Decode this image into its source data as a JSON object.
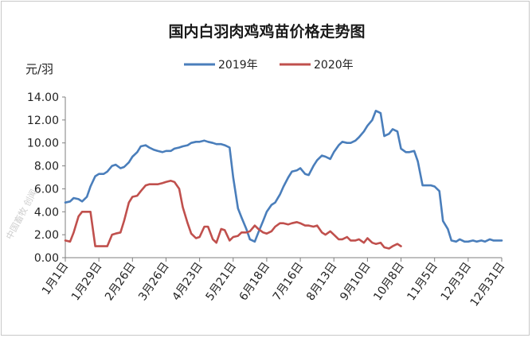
{
  "chart_data": {
    "type": "line",
    "title": "国内白羽肉鸡鸡苗价格走势图",
    "ylabel": "元/羽",
    "ylim": [
      0,
      14
    ],
    "yticks": [
      "0.00",
      "2.00",
      "4.00",
      "6.00",
      "8.00",
      "10.00",
      "12.00",
      "14.00"
    ],
    "xticks": [
      "1月1日",
      "1月29日",
      "2月26日",
      "3月26日",
      "4月23日",
      "5月21日",
      "6月18日",
      "7月16日",
      "8月13日",
      "9月10日",
      "10月8日",
      "11月5日",
      "12月3日",
      "12月31日"
    ],
    "grid": false,
    "legend_position": "top",
    "series": [
      {
        "name": "2019年",
        "color": "#4a7ebb",
        "x": [
          "1月1日",
          "1月5日",
          "1月8日",
          "1月12日",
          "1月15日",
          "1月19日",
          "1月22日",
          "1月26日",
          "1月29日",
          "2月2日",
          "2月5日",
          "2月9日",
          "2月12日",
          "2月16日",
          "2月19日",
          "2月23日",
          "2月26日",
          "3月2日",
          "3月5日",
          "3月9日",
          "3月12日",
          "3月16日",
          "3月19日",
          "3月23日",
          "3月26日",
          "3月30日",
          "4月2日",
          "4月6日",
          "4月9日",
          "4月13日",
          "4月16日",
          "4月20日",
          "4月23日",
          "4月27日",
          "4月30日",
          "5月4日",
          "5月7日",
          "5月11日",
          "5月14日",
          "5月18日",
          "5月21日",
          "5月25日",
          "5月28日",
          "6月1日",
          "6月4日",
          "6月8日",
          "6月11日",
          "6月15日",
          "6月18日",
          "6月22日",
          "6月25日",
          "6月29日",
          "7月2日",
          "7月6日",
          "7月9日",
          "7月13日",
          "7月16日",
          "7月20日",
          "7月23日",
          "7月27日",
          "7月30日",
          "8月3日",
          "8月6日",
          "8月10日",
          "8月13日",
          "8月17日",
          "8月20日",
          "8月24日",
          "8月27日",
          "8月31日",
          "9月3日",
          "9月7日",
          "9月10日",
          "9月14日",
          "9月17日",
          "9月21日",
          "9月24日",
          "9月28日",
          "10月1日",
          "10月5日",
          "10月8日",
          "10月12日",
          "10月15日",
          "10月19日",
          "10月22日",
          "10月26日",
          "10月29日",
          "11月2日",
          "11月5日",
          "11月9日",
          "11月12日",
          "11月16日",
          "11月19日",
          "11月23日",
          "11月26日",
          "11月30日",
          "12月3日",
          "12月7日",
          "12月10日",
          "12月14日",
          "12月17日",
          "12月21日",
          "12月24日",
          "12月28日",
          "12月31日"
        ],
        "values": [
          4.8,
          4.9,
          5.2,
          5.1,
          4.9,
          5.3,
          6.2,
          7.1,
          7.3,
          7.3,
          7.5,
          8.0,
          8.1,
          7.8,
          7.9,
          8.3,
          8.8,
          9.2,
          9.7,
          9.8,
          9.6,
          9.4,
          9.3,
          9.2,
          9.3,
          9.3,
          9.5,
          9.6,
          9.7,
          9.8,
          10.0,
          10.1,
          10.1,
          10.2,
          10.1,
          10.0,
          9.9,
          9.9,
          9.8,
          9.6,
          7.0,
          4.3,
          3.5,
          2.5,
          1.6,
          1.4,
          2.2,
          3.2,
          4.0,
          4.6,
          4.8,
          5.5,
          6.2,
          7.0,
          7.5,
          7.6,
          7.8,
          7.3,
          7.2,
          8.0,
          8.5,
          8.9,
          8.8,
          8.6,
          9.2,
          9.8,
          10.1,
          10.0,
          10.0,
          10.2,
          10.5,
          11.0,
          11.5,
          12.0,
          12.8,
          12.6,
          10.6,
          10.8,
          11.2,
          11.0,
          9.5,
          9.2,
          9.2,
          9.3,
          8.4,
          6.3,
          6.3,
          6.3,
          6.2,
          5.8,
          3.2,
          2.5,
          1.5,
          1.4,
          1.6,
          1.4,
          1.4,
          1.5,
          1.4,
          1.5,
          1.4,
          1.6,
          1.5,
          1.5,
          1.5
        ]
      },
      {
        "name": "2020年",
        "color": "#c0504d",
        "x": [
          "1月1日",
          "1月5日",
          "1月8日",
          "1月12日",
          "1月15日",
          "1月19日",
          "1月22日",
          "1月26日",
          "1月29日",
          "2月2日",
          "2月5日",
          "2月9日",
          "2月12日",
          "2月16日",
          "2月19日",
          "2月23日",
          "2月26日",
          "3月2日",
          "3月5日",
          "3月9日",
          "3月12日",
          "3月16日",
          "3月19日",
          "3月23日",
          "3月26日",
          "3月30日",
          "4月2日",
          "4月6日",
          "4月9日",
          "4月13日",
          "4月16日",
          "4月20日",
          "4月23日",
          "4月27日",
          "4月30日",
          "5月4日",
          "5月7日",
          "5月11日",
          "5月14日",
          "5月18日",
          "5月21日",
          "5月25日",
          "5月28日",
          "6月1日",
          "6月4日",
          "6月8日",
          "6月11日",
          "6月15日",
          "6月18日",
          "6月22日",
          "6月25日",
          "6月29日",
          "7月2日",
          "7月6日",
          "7月9日",
          "7月13日",
          "7月16日",
          "7月20日",
          "7月23日",
          "7月27日",
          "7月30日",
          "8月3日",
          "8月6日",
          "8月10日",
          "8月13日",
          "8月17日",
          "8月20日",
          "8月24日",
          "8月27日",
          "8月31日",
          "9月3日",
          "9月7日",
          "9月10日",
          "9月14日",
          "9月17日",
          "9月21日",
          "9月24日",
          "9月28日",
          "10月1日",
          "10月5日",
          "10月8日"
        ],
        "values": [
          1.5,
          1.4,
          2.2,
          3.6,
          4.0,
          4.0,
          4.0,
          1.0,
          1.0,
          1.0,
          1.0,
          2.0,
          2.1,
          2.2,
          3.2,
          4.8,
          5.3,
          5.4,
          5.8,
          6.3,
          6.4,
          6.4,
          6.4,
          6.5,
          6.6,
          6.7,
          6.6,
          6.0,
          4.4,
          3.0,
          2.1,
          1.7,
          1.8,
          2.7,
          2.7,
          1.6,
          1.3,
          2.5,
          2.4,
          1.5,
          1.8,
          1.9,
          2.2,
          2.2,
          2.3,
          2.8,
          2.5,
          2.2,
          2.1,
          2.3,
          2.7,
          3.0,
          3.0,
          2.9,
          3.0,
          3.1,
          3.0,
          2.8,
          2.8,
          2.7,
          2.8,
          2.2,
          2.0,
          2.3,
          2.0,
          1.6,
          1.6,
          1.8,
          1.5,
          1.5,
          1.6,
          1.3,
          1.7,
          1.3,
          1.2,
          1.3,
          0.9,
          0.8,
          1.0,
          1.2,
          1.0
        ]
      }
    ]
  },
  "watermark": "中国畜牧 创闻"
}
